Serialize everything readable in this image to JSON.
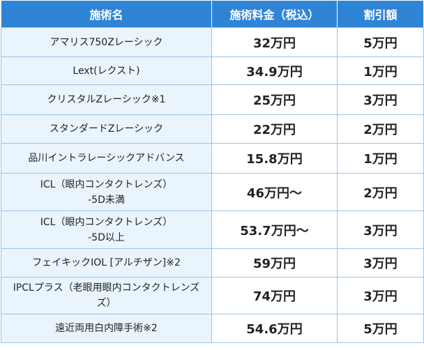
{
  "table": {
    "headers": [
      "施術名",
      "施術料金（税込）",
      "割引額"
    ],
    "rows": [
      {
        "name": [
          "アマリス750Zレーシック"
        ],
        "price": "32万円",
        "discount": "5万円"
      },
      {
        "name": [
          "Lext(レクスト)"
        ],
        "price": "34.9万円",
        "discount": "1万円"
      },
      {
        "name": [
          "クリスタルZレーシック※1"
        ],
        "price": "25万円",
        "discount": "3万円"
      },
      {
        "name": [
          "スタンダードZレーシック"
        ],
        "price": "22万円",
        "discount": "2万円"
      },
      {
        "name": [
          "品川イントラレーシックアドバンス"
        ],
        "price": "15.8万円",
        "discount": "1万円"
      },
      {
        "name": [
          "ICL（眼内コンタクトレンズ）",
          "-5D未満"
        ],
        "price": "46万円〜",
        "discount": "2万円"
      },
      {
        "name": [
          "ICL（眼内コンタクトレンズ）",
          "-5D以上"
        ],
        "price": "53.7万円〜",
        "discount": "3万円"
      },
      {
        "name": [
          "フェイキックIOL [アルチザン]※2"
        ],
        "price": "59万円",
        "discount": "3万円"
      },
      {
        "name": [
          "IPCLプラス（老眼用眼内コンタクトレンズ",
          "ズ）"
        ],
        "price": "74万円",
        "discount": "3万円"
      },
      {
        "name": [
          "遠近両用白内障手術※2"
        ],
        "price": "54.6万円",
        "discount": "5万円"
      }
    ]
  },
  "colors": {
    "header_bg": "#2f84d6",
    "header_text": "#ffffff",
    "name_cell_bg": "#eaf4fd",
    "border": "#9cc3e8"
  }
}
